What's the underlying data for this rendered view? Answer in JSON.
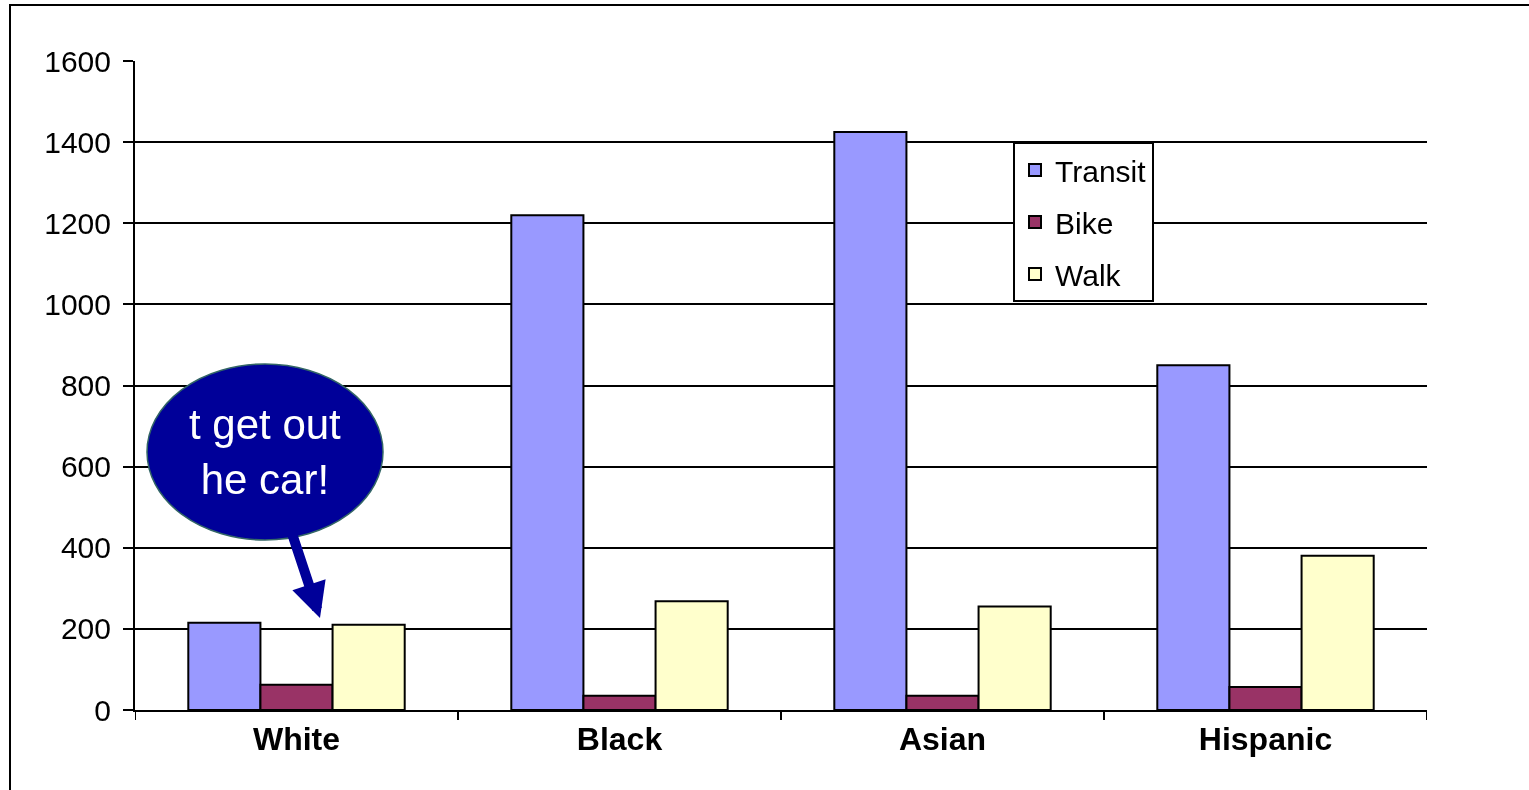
{
  "chart_data": {
    "type": "bar",
    "categories": [
      "White",
      "Black",
      "Asian",
      "Hispanic"
    ],
    "series": [
      {
        "name": "Transit",
        "color": "#9999ff",
        "values": [
          215,
          1220,
          1425,
          850
        ]
      },
      {
        "name": "Bike",
        "color": "#993366",
        "values": [
          62,
          35,
          35,
          57
        ]
      },
      {
        "name": "Walk",
        "color": "#ffffcc",
        "values": [
          210,
          268,
          255,
          380
        ]
      }
    ],
    "ylim": [
      0,
      1600
    ],
    "yticks": [
      0,
      200,
      400,
      600,
      800,
      1000,
      1200,
      1400,
      1600
    ],
    "grid": "y",
    "legend": "top right",
    "annotations": [
      "t get out\nhe car!"
    ]
  }
}
